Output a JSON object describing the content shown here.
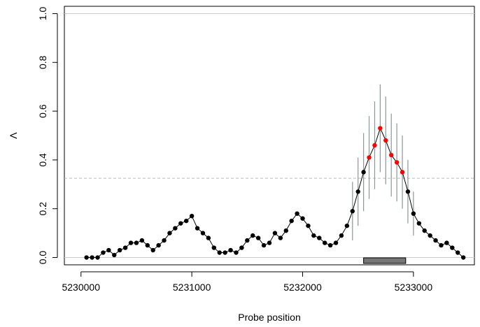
{
  "chart_data": {
    "type": "line",
    "title": "",
    "xlabel": "Probe position",
    "ylabel": "Λ",
    "xlim": [
      5229850,
      5233550
    ],
    "ylim": [
      -0.03,
      1.03
    ],
    "x_ticks": [
      5230000,
      5231000,
      5232000,
      5233000
    ],
    "x_tick_labels": [
      "5230000",
      "5231000",
      "5232000",
      "5233000"
    ],
    "y_ticks": [
      0.0,
      0.2,
      0.4,
      0.6,
      0.8,
      1.0
    ],
    "y_tick_labels": [
      "0.0",
      "0.2",
      "0.4",
      "0.6",
      "0.8",
      "1.0"
    ],
    "grid": false,
    "reference_lines": [
      {
        "y": 0.0,
        "style": "solid",
        "color": "#cccccc"
      },
      {
        "y": 1.0,
        "style": "solid",
        "color": "#cccccc"
      },
      {
        "y": 0.325,
        "style": "dashed",
        "color": "#bbbbbb"
      }
    ],
    "region_bar": {
      "x_start": 5232550,
      "x_end": 5232930,
      "color": "#777777"
    },
    "colors": {
      "point": "#000000",
      "highlight": "#ff0000",
      "error_bar": "#8c9696"
    },
    "series": [
      {
        "x": [
          5230050,
          5230100,
          5230150,
          5230200,
          5230250,
          5230300,
          5230350,
          5230400,
          5230450,
          5230500,
          5230550,
          5230600,
          5230650,
          5230700,
          5230750,
          5230800,
          5230850,
          5230900,
          5230950,
          5231000,
          5231050,
          5231100,
          5231150,
          5231200,
          5231250,
          5231300,
          5231350,
          5231400,
          5231450,
          5231500,
          5231550,
          5231600,
          5231650,
          5231700,
          5231750,
          5231800,
          5231850,
          5231900,
          5231950,
          5232000,
          5232050,
          5232100,
          5232150,
          5232200,
          5232250,
          5232300,
          5232350,
          5232400,
          5232450,
          5232500,
          5232550,
          5232600,
          5232650,
          5232700,
          5232750,
          5232800,
          5232850,
          5232900,
          5232950,
          5233000,
          5233050,
          5233100,
          5233150,
          5233200,
          5233250,
          5233300,
          5233350,
          5233400,
          5233450
        ],
        "y": [
          0.0,
          0.0,
          0.0,
          0.02,
          0.03,
          0.01,
          0.03,
          0.04,
          0.06,
          0.06,
          0.07,
          0.05,
          0.03,
          0.05,
          0.07,
          0.1,
          0.12,
          0.14,
          0.15,
          0.17,
          0.12,
          0.1,
          0.08,
          0.04,
          0.02,
          0.02,
          0.03,
          0.02,
          0.04,
          0.07,
          0.09,
          0.08,
          0.05,
          0.06,
          0.1,
          0.08,
          0.11,
          0.15,
          0.18,
          0.16,
          0.13,
          0.09,
          0.08,
          0.06,
          0.05,
          0.06,
          0.09,
          0.13,
          0.19,
          0.27,
          0.35,
          0.41,
          0.46,
          0.53,
          0.48,
          0.42,
          0.39,
          0.35,
          0.27,
          0.18,
          0.14,
          0.11,
          0.09,
          0.07,
          0.05,
          0.06,
          0.04,
          0.02,
          0.0
        ],
        "error": [
          0,
          0,
          0,
          0,
          0,
          0,
          0,
          0,
          0,
          0,
          0,
          0,
          0,
          0,
          0,
          0,
          0,
          0,
          0,
          0,
          0,
          0,
          0,
          0,
          0,
          0,
          0,
          0,
          0,
          0,
          0,
          0,
          0,
          0,
          0,
          0,
          0,
          0,
          0,
          0,
          0,
          0,
          0,
          0,
          0,
          0,
          0,
          0,
          0.12,
          0.14,
          0.16,
          0.17,
          0.18,
          0.18,
          0.18,
          0.17,
          0.16,
          0.15,
          0.13,
          0.09,
          0,
          0,
          0,
          0,
          0,
          0,
          0,
          0,
          0
        ],
        "highlight": [
          false,
          false,
          false,
          false,
          false,
          false,
          false,
          false,
          false,
          false,
          false,
          false,
          false,
          false,
          false,
          false,
          false,
          false,
          false,
          false,
          false,
          false,
          false,
          false,
          false,
          false,
          false,
          false,
          false,
          false,
          false,
          false,
          false,
          false,
          false,
          false,
          false,
          false,
          false,
          false,
          false,
          false,
          false,
          false,
          false,
          false,
          false,
          false,
          false,
          false,
          false,
          true,
          true,
          true,
          true,
          true,
          true,
          true,
          false,
          false,
          false,
          false,
          false,
          false,
          false,
          false,
          false,
          false,
          false
        ]
      }
    ]
  }
}
